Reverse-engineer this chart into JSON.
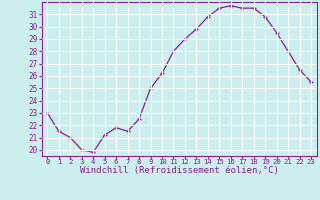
{
  "x": [
    0,
    1,
    2,
    3,
    4,
    5,
    6,
    7,
    8,
    9,
    10,
    11,
    12,
    13,
    14,
    15,
    16,
    17,
    18,
    19,
    20,
    21,
    22,
    23
  ],
  "y": [
    23.0,
    21.5,
    21.0,
    20.0,
    19.8,
    21.2,
    21.8,
    21.5,
    22.5,
    25.0,
    26.2,
    28.0,
    29.0,
    29.8,
    30.8,
    31.5,
    31.7,
    31.5,
    31.5,
    30.8,
    29.5,
    28.0,
    26.5,
    25.5
  ],
  "line_color": "#882288",
  "marker": "+",
  "bg_color": "#cceeee",
  "grid_color": "#ffffff",
  "xlabel": "Windchill (Refroidissement éolien,°C)",
  "xlabel_color": "#882288",
  "tick_color": "#882288",
  "spine_color": "#882288",
  "ylim": [
    19.5,
    32.0
  ],
  "xlim": [
    -0.5,
    23.5
  ],
  "yticks": [
    20,
    21,
    22,
    23,
    24,
    25,
    26,
    27,
    28,
    29,
    30,
    31
  ],
  "xtick_labels": [
    "0",
    "1",
    "2",
    "3",
    "4",
    "5",
    "6",
    "7",
    "8",
    "9",
    "10",
    "11",
    "12",
    "13",
    "14",
    "15",
    "16",
    "17",
    "18",
    "19",
    "20",
    "21",
    "22",
    "23"
  ],
  "font_family": "monospace",
  "xlabel_fontsize": 6.5,
  "ytick_fontsize": 5.5,
  "xtick_fontsize": 5.2
}
